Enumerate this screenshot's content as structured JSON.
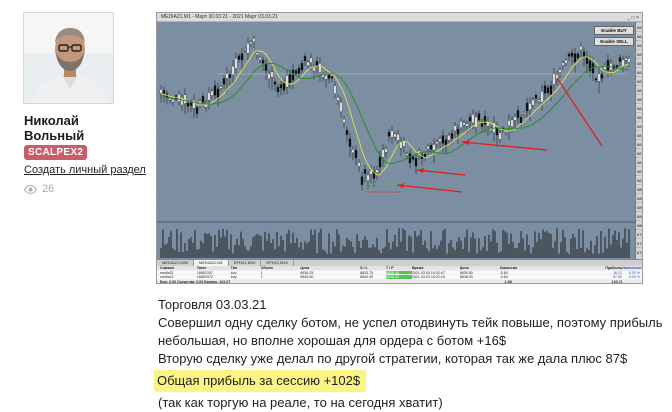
{
  "profile": {
    "first_name": "Николай",
    "last_name": "Вольный",
    "badge": "SCALPEX2",
    "create_link": "Создать личный раздел",
    "views_count": "26"
  },
  "terminal": {
    "title": "MEDIA21.M1 - Март 30.03.21 - 2021 Март 03.03.21",
    "window_controls": "_ □ ×",
    "buttons": {
      "enable_buy": "Enable BUY",
      "enable_sell": "Enable SELL"
    },
    "price_levels": [
      "8844.0",
      "8842.0",
      "8840.0",
      "8838.0",
      "8836.0",
      "8834.0",
      "8832.0",
      "8830.0",
      "8828.0",
      "8826.0",
      "8824.0",
      "8822.0",
      "8820.0",
      "8818.0",
      "8816.0",
      "8814.0",
      "8812.0",
      "8810.0",
      "8808.0",
      "8806.0",
      "8804.0",
      "8802.0",
      "8800.0",
      "8798.0",
      "8796.0",
      "8794.0"
    ],
    "chart_tabs": [
      "MEDIA21,M30",
      "MEDIA21,M1",
      "EPH21,M10",
      "EPH21,M10"
    ],
    "active_tab": 1,
    "table": {
      "headers": [
        "Символ",
        "Тикет",
        "Тип",
        "Объем",
        "Цена",
        "S / L",
        "T / P",
        "Время",
        "Цена",
        "Комиссия",
        "",
        "Прибыль",
        "Изменение"
      ],
      "rows": [
        {
          "symbol": "media21",
          "ticket": "16852307",
          "type": "buy",
          "volume": "1",
          "price": "8836.25",
          "sl": "8833.75",
          "tp": "8839.00",
          "time": "2021.03.03 15:32:47",
          "cur_price": "8839.50",
          "commission": "-0.84",
          "profit": "16.21",
          "change": "0.05 %"
        },
        {
          "symbol": "media21",
          "ticket": "16852972",
          "type": "buy",
          "volume": "1",
          "price": "8845.50",
          "sl": "8840.00",
          "tp": "8848.00",
          "time": "2021.03.03 16:22:15",
          "cur_price": "8848.00",
          "commission": "-0.84",
          "profit": "87.50",
          "change": "0.05 %"
        }
      ],
      "total": {
        "label": "Бал: 0.00  Средства: 0.00  Баланс: 102.07",
        "commission": "-1.68",
        "profit": "103.71"
      }
    },
    "colors": {
      "chart_background": "#7c8ea1",
      "candle_body": "#111111",
      "ma_fast": "#2e8b2e",
      "ma_slow": "#d9e84a",
      "annotation_arrows": "#e0201c",
      "tp_highlight": "#52c457"
    }
  },
  "post": {
    "date_line": "Торговля 03.03.21",
    "line1": "Совершил одну сделку ботом, не успел отодвинуть тейк повыше, поэтому прибыль",
    "line2": "небольшая, но вполне хорошая для ордера с ботом +16$",
    "line3": "Вторую сделку уже делал по другой стратегии, которая так же дала плюс 87$",
    "highlight": "Общая прибыль за сессию +102$",
    "line5": "(так как торгую на реале, то на сегодня хватит)"
  }
}
